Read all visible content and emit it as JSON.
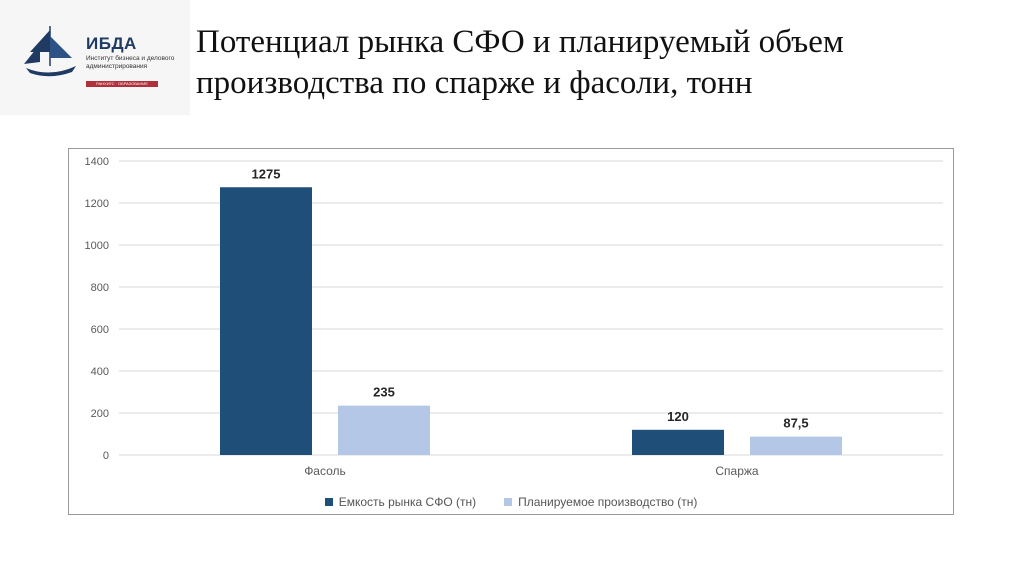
{
  "logo": {
    "name": "ИБДА",
    "subtitle": "Институт бизнеса и делового администрирования",
    "tagline": "РАНХИГС · ОБРАЗОВАНИЕ"
  },
  "title_lines": [
    "Потенциал рынка СФО и планируемый объем",
    "производства по спарже и фасоли, тонн"
  ],
  "colors": {
    "series_dark": "#1f4e79",
    "series_light": "#b4c7e7",
    "logo_red": "#b0303a",
    "logo_navy": "#1f3b63"
  },
  "chart_data": {
    "type": "bar",
    "title": "",
    "xlabel": "",
    "ylabel": "",
    "categories": [
      "Фасоль",
      "Спаржа"
    ],
    "series": [
      {
        "name": "Емкость рынка СФО (тн)",
        "values": [
          1275,
          120
        ],
        "labels": [
          "1275",
          "120"
        ]
      },
      {
        "name": "Планируемое производство (тн)",
        "values": [
          235,
          87.5
        ],
        "labels": [
          "235",
          "87,5"
        ]
      }
    ],
    "ylim": [
      0,
      1400
    ],
    "yticks": [
      0,
      200,
      400,
      600,
      800,
      1000,
      1200,
      1400
    ],
    "grid": true,
    "legend": "bottom"
  }
}
